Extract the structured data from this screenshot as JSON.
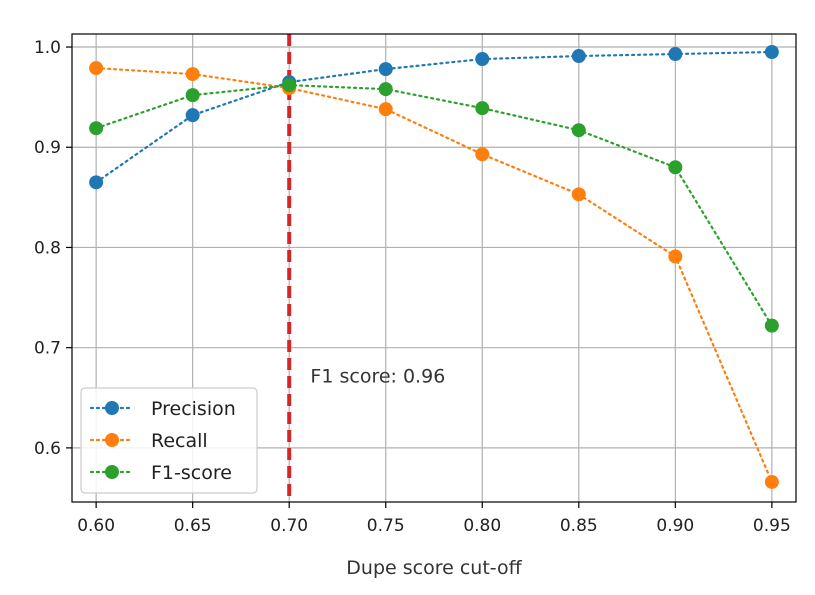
{
  "chart_data": {
    "type": "line",
    "title": "",
    "xlabel": "Dupe score cut-off",
    "ylabel": "",
    "x": [
      0.6,
      0.65,
      0.7,
      0.75,
      0.8,
      0.85,
      0.9,
      0.95
    ],
    "x_tick_labels": [
      "0.60",
      "0.65",
      "0.70",
      "0.75",
      "0.80",
      "0.85",
      "0.90",
      "0.95"
    ],
    "y_ticks": [
      0.6,
      0.7,
      0.8,
      0.9,
      1.0
    ],
    "y_tick_labels": [
      "0.6",
      "0.7",
      "0.8",
      "0.9",
      "1.0"
    ],
    "xlim": [
      0.5875,
      0.9625
    ],
    "ylim": [
      0.546,
      1.013
    ],
    "grid": true,
    "legend_position": "lower-left",
    "series": [
      {
        "name": "Precision",
        "color": "#1f77b4",
        "marker": "circle",
        "linestyle": "dotted",
        "values": [
          0.865,
          0.932,
          0.965,
          0.978,
          0.988,
          0.991,
          0.993,
          0.995
        ]
      },
      {
        "name": "Recall",
        "color": "#ff7f0e",
        "marker": "circle",
        "linestyle": "dotted",
        "values": [
          0.979,
          0.973,
          0.959,
          0.938,
          0.893,
          0.853,
          0.791,
          0.566
        ]
      },
      {
        "name": "F1-score",
        "color": "#2ca02c",
        "marker": "circle",
        "linestyle": "dotted",
        "values": [
          0.919,
          0.952,
          0.962,
          0.958,
          0.939,
          0.917,
          0.88,
          0.722
        ]
      }
    ],
    "annotations": [
      {
        "type": "vline",
        "x": 0.7,
        "color": "#d62728",
        "linestyle": "dashed"
      },
      {
        "type": "text",
        "text": "F1 score: 0.96",
        "x": 0.711,
        "y": 0.665
      }
    ]
  }
}
